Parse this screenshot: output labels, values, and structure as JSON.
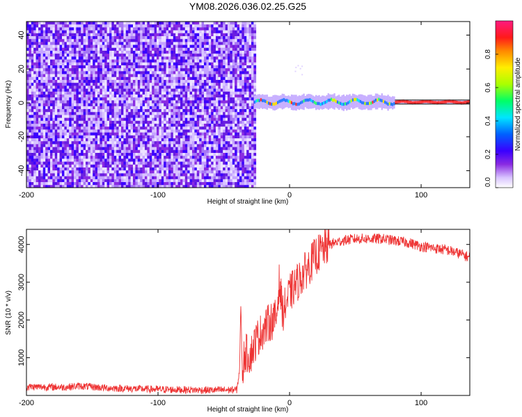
{
  "title": "YM08.2026.036.02.25.G25",
  "chart_data": [
    {
      "type": "heatmap",
      "title": "YM08.2026.036.02.25.G25",
      "xlabel": "Height of straight line (km)",
      "ylabel": "Frequency (Hz)",
      "xlim": [
        -200,
        137
      ],
      "ylim": [
        -50,
        48
      ],
      "x_ticks": [
        -200,
        -100,
        0,
        100
      ],
      "x_tick_labels": [
        "-200",
        "-100",
        "0",
        "100"
      ],
      "y_ticks": [
        -40,
        -20,
        0,
        20,
        40
      ],
      "y_tick_labels": [
        "-40",
        "-20",
        "0",
        "20",
        "40"
      ],
      "noise_region_x": [
        -200,
        -27
      ],
      "signal_start_x": -27,
      "signal_center_frequency": 0.5,
      "colorbar": {
        "label": "Normalized spectral amplitude",
        "range": [
          0,
          1
        ],
        "ticks": [
          0.0,
          0.2,
          0.4,
          0.6,
          0.8
        ],
        "tick_labels": [
          "0.0",
          "0.2",
          "0.4",
          "0.6",
          "0.8"
        ],
        "colors": [
          "#ffffff",
          "#d9c4ff",
          "#8a2be2",
          "#3a00ff",
          "#0060ff",
          "#00e5ff",
          "#00ff66",
          "#aaff00",
          "#ffee00",
          "#ff8800",
          "#ff1a1a",
          "#ff1a80"
        ]
      }
    },
    {
      "type": "line",
      "xlabel": "Height of straight line (km)",
      "ylabel": "SNR (10 * v/v)",
      "xlim": [
        -200,
        137
      ],
      "ylim": [
        0,
        4400
      ],
      "x_ticks": [
        -200,
        -100,
        0,
        100
      ],
      "x_tick_labels": [
        "-200",
        "-100",
        "0",
        "100"
      ],
      "y_ticks": [
        1000,
        2000,
        3000,
        4000
      ],
      "y_tick_labels": [
        "1000",
        "2000",
        "3000",
        "4000"
      ],
      "line_color": "#ee3333",
      "series": [
        {
          "name": "SNR",
          "x": [
            -200,
            -170,
            -160,
            -140,
            -100,
            -60,
            -40,
            -38,
            -37,
            -36,
            -34,
            -30,
            -25,
            -20,
            -15,
            -10,
            -8,
            -5,
            0,
            10,
            20,
            30,
            40,
            50,
            60,
            70,
            80,
            90,
            100,
            110,
            120,
            130,
            137
          ],
          "y": [
            230,
            220,
            250,
            200,
            160,
            140,
            150,
            700,
            2500,
            600,
            1150,
            1050,
            1500,
            1750,
            1950,
            2050,
            3000,
            2200,
            2700,
            3200,
            3700,
            4000,
            4100,
            4150,
            4150,
            4150,
            4100,
            4050,
            3950,
            3900,
            3850,
            3750,
            3650
          ],
          "noise_amplitude": 140
        }
      ]
    }
  ]
}
